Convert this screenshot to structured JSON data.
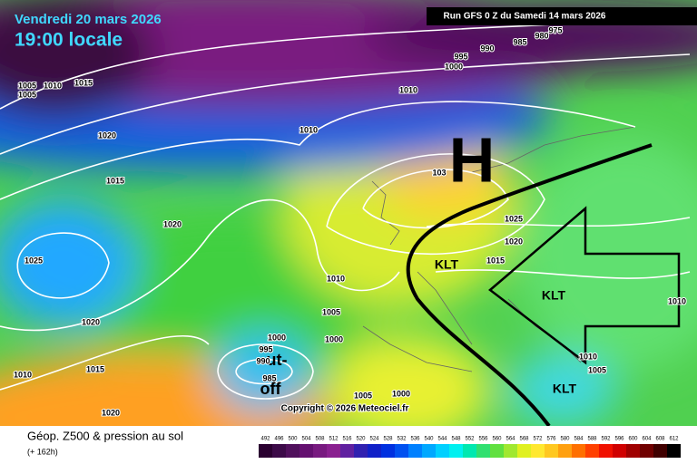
{
  "header": {
    "date": "Vendredi 20 mars 2026",
    "time": "19:00 locale",
    "run": "Run GFS 0 Z du Samedi 14 mars 2026"
  },
  "map": {
    "high": "H",
    "klt": [
      "KLT",
      "KLT",
      "KLT"
    ],
    "cutoff": [
      "ut-",
      "off"
    ],
    "copyright": "Copyright © 2026 Meteociel.fr",
    "isobars": [
      "1005",
      "1005",
      "1010",
      "1015",
      "1020",
      "1015",
      "1010",
      "1020",
      "1025",
      "1020",
      "1010",
      "1015",
      "1020",
      "1010",
      "1005",
      "1000",
      "1000",
      "995",
      "990",
      "985",
      "1005",
      "1000",
      "1025",
      "1020",
      "1015",
      "1010",
      "1010",
      "1005",
      "1000",
      "995",
      "990",
      "985",
      "980",
      "975",
      "1010",
      "103"
    ]
  },
  "footer": {
    "title": "Géop. Z500 & pression au sol",
    "lead": "(+ 162h)"
  },
  "legend": {
    "values": [
      "492",
      "496",
      "500",
      "504",
      "508",
      "512",
      "516",
      "520",
      "524",
      "528",
      "532",
      "536",
      "540",
      "544",
      "548",
      "552",
      "556",
      "560",
      "564",
      "568",
      "572",
      "576",
      "580",
      "584",
      "588",
      "592",
      "596",
      "600",
      "604",
      "608",
      "612"
    ],
    "colors": [
      "#2a0030",
      "#3c0a48",
      "#50105c",
      "#641070",
      "#781a80",
      "#8a2090",
      "#6020a0",
      "#3020b0",
      "#1020c8",
      "#0030e0",
      "#0050f0",
      "#0080ff",
      "#00a8ff",
      "#00d0ff",
      "#00f0f0",
      "#00e8b0",
      "#30e070",
      "#60e040",
      "#a0e830",
      "#e0f020",
      "#ffe830",
      "#ffc820",
      "#ffa010",
      "#ff7000",
      "#ff4000",
      "#f01000",
      "#d00000",
      "#a00000",
      "#700000",
      "#400000",
      "#000000"
    ]
  }
}
